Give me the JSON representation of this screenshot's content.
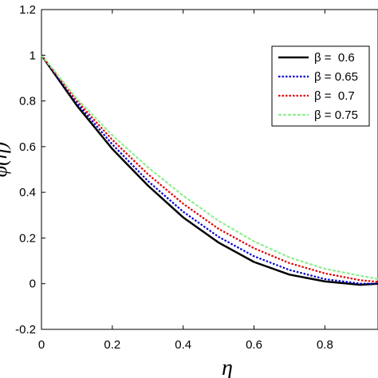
{
  "chart_data": {
    "type": "line",
    "xlabel": "η",
    "ylabel": "φ(η)",
    "xlim": [
      0,
      0.95
    ],
    "ylim": [
      -0.2,
      1.2
    ],
    "x_ticks": [
      "0",
      "0.2",
      "0.4",
      "0.6",
      "0.8"
    ],
    "y_ticks": [
      "-0.2",
      "0",
      "0.2",
      "0.4",
      "0.6",
      "0.8",
      "1",
      "1.2"
    ],
    "grid": false,
    "legend_position": "top-right",
    "series": [
      {
        "name": "β =  0.6",
        "color": "#000000",
        "style": "solid",
        "x": [
          0,
          0.1,
          0.2,
          0.3,
          0.4,
          0.5,
          0.6,
          0.7,
          0.8,
          0.9,
          0.95
        ],
        "y": [
          1.0,
          0.78,
          0.59,
          0.43,
          0.29,
          0.18,
          0.095,
          0.04,
          0.01,
          -0.005,
          0.0
        ]
      },
      {
        "name": "β = 0.65",
        "color": "#0000cc",
        "style": "dotted",
        "x": [
          0,
          0.1,
          0.2,
          0.3,
          0.4,
          0.5,
          0.6,
          0.7,
          0.8,
          0.9,
          0.95
        ],
        "y": [
          1.0,
          0.79,
          0.61,
          0.45,
          0.315,
          0.205,
          0.12,
          0.06,
          0.02,
          0.0,
          0.0
        ]
      },
      {
        "name": "β =  0.7",
        "color": "#e00000",
        "style": "dotted",
        "x": [
          0,
          0.1,
          0.2,
          0.3,
          0.4,
          0.5,
          0.6,
          0.7,
          0.8,
          0.9,
          0.95
        ],
        "y": [
          1.0,
          0.8,
          0.63,
          0.48,
          0.35,
          0.24,
          0.155,
          0.09,
          0.045,
          0.015,
          0.008
        ]
      },
      {
        "name": "β = 0.75",
        "color": "#90ee90",
        "style": "dashed",
        "x": [
          0,
          0.1,
          0.2,
          0.3,
          0.4,
          0.5,
          0.6,
          0.7,
          0.8,
          0.9,
          0.95
        ],
        "y": [
          1.0,
          0.81,
          0.65,
          0.51,
          0.385,
          0.275,
          0.185,
          0.115,
          0.065,
          0.035,
          0.02
        ]
      }
    ]
  }
}
